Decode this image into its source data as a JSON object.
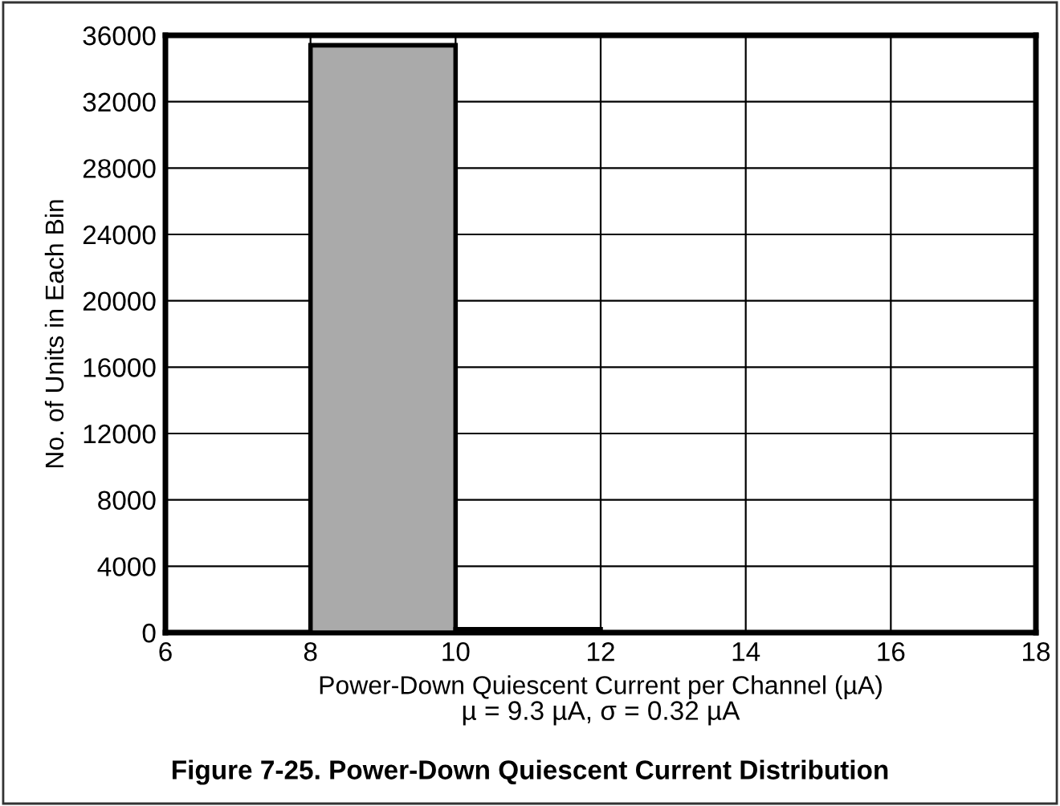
{
  "chart_data": {
    "type": "histogram",
    "title": "Figure 7-25. Power-Down Quiescent Current Distribution",
    "xlabel": "Power-Down Quiescent Current per Channel (µA)",
    "ylabel": "No. of Units in Each Bin",
    "annotations": [
      "µ = 9.3 µA, σ = 0.32 µA"
    ],
    "bins": [
      6,
      8,
      10,
      12,
      14,
      16,
      18
    ],
    "values": [
      0,
      35400,
      200,
      0,
      0,
      0
    ],
    "color": "#aaaaaa",
    "xlim": [
      6,
      18
    ],
    "xticks": [
      6,
      8,
      10,
      12,
      14,
      16,
      18
    ],
    "ylim": [
      0,
      36000
    ],
    "yticks": [
      0,
      4000,
      8000,
      12000,
      16000,
      20000,
      24000,
      28000,
      32000,
      36000
    ],
    "grid": true
  }
}
